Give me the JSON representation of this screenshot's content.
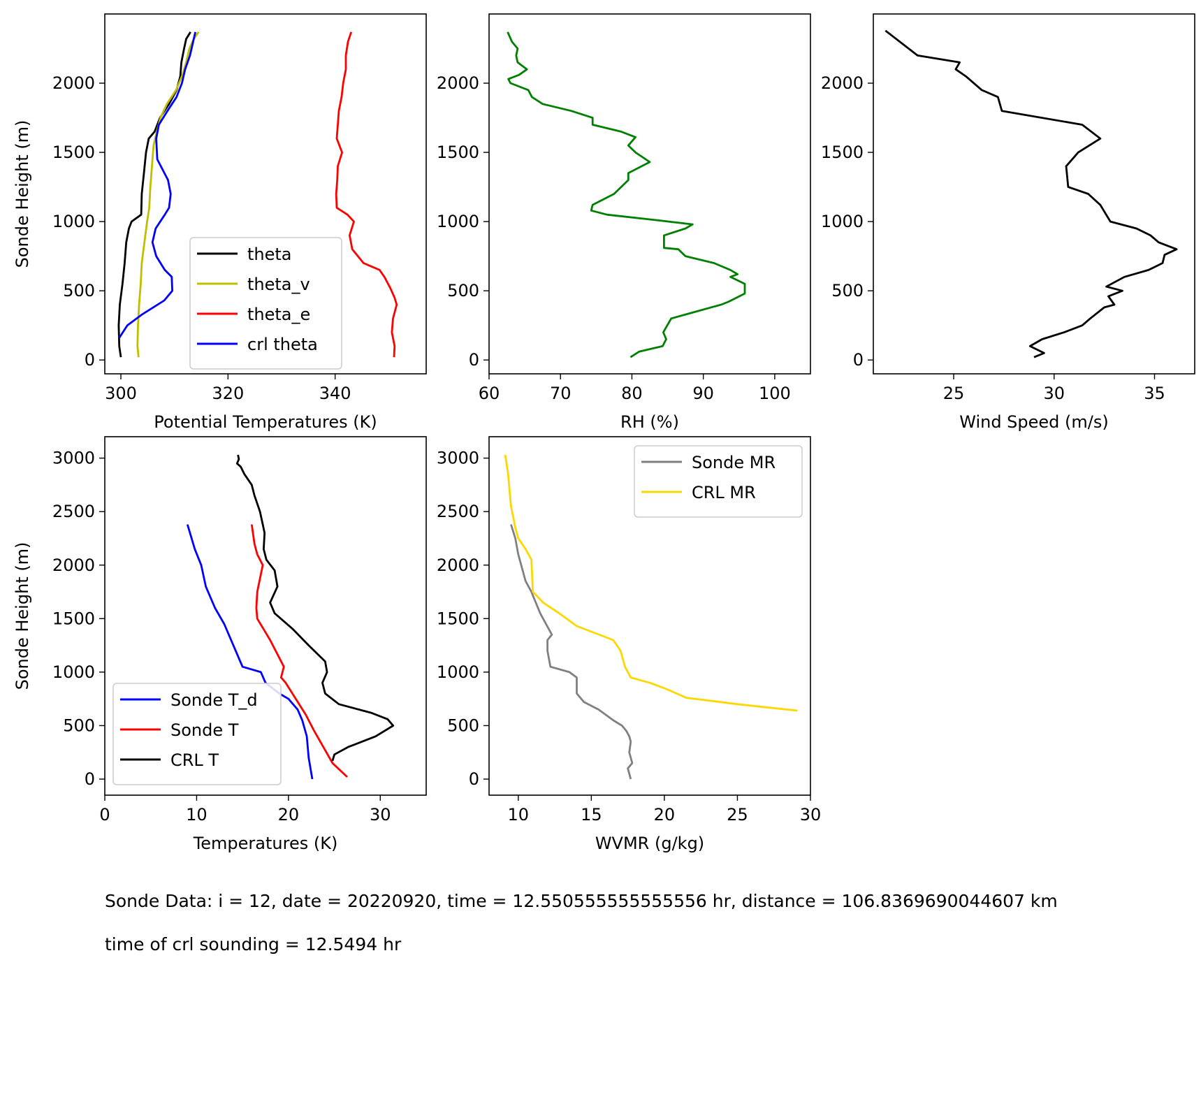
{
  "notes": {
    "sonde_line": "Sonde Data: i = 12, date = 20220920, time = 12.550555555555556 hr, distance = 106.8369690044607 km",
    "crl_line": "time of crl sounding = 12.5494 hr"
  },
  "chart_data": [
    {
      "type": "line",
      "xlabel": "Potential Temperatures (K)",
      "ylabel": "Sonde Height (m)",
      "xlim": [
        297,
        357
      ],
      "ylim": [
        -100,
        2500
      ],
      "xticks": [
        300,
        320,
        340
      ],
      "yticks": [
        0,
        500,
        1000,
        1500,
        2000
      ],
      "legend": "lower-right",
      "series": [
        {
          "name": "theta",
          "color": "#000000",
          "x": [
            300.0,
            299.7,
            299.6,
            299.8,
            300.3,
            300.7,
            301.0,
            301.5,
            302.0,
            303.8,
            303.9,
            304.3,
            304.7,
            305.2,
            306.3,
            307.3,
            309.0,
            310.4,
            311.1,
            311.3,
            311.8,
            312.2,
            313.0
          ],
          "y": [
            20,
            100,
            250,
            400,
            550,
            700,
            850,
            950,
            1000,
            1050,
            1200,
            1350,
            1500,
            1600,
            1650,
            1750,
            1850,
            1950,
            2050,
            2150,
            2250,
            2320,
            2370
          ]
        },
        {
          "name": "theta_v",
          "color": "#bfbf00",
          "x": [
            303.3,
            303.1,
            303.2,
            303.4,
            303.7,
            303.9,
            304.4,
            304.9,
            305.3,
            305.5,
            305.8,
            306.1,
            306.7,
            307.4,
            308.6,
            310.3,
            311.4,
            312.2,
            312.8,
            313.6,
            314.5
          ],
          "y": [
            20,
            100,
            250,
            400,
            550,
            700,
            850,
            1000,
            1100,
            1250,
            1400,
            1550,
            1650,
            1750,
            1850,
            1950,
            2050,
            2150,
            2250,
            2320,
            2370
          ]
        },
        {
          "name": "theta_e",
          "color": "#ff0000",
          "x": [
            351.0,
            351.1,
            350.6,
            350.8,
            351.5,
            351.1,
            350.3,
            349.2,
            348.3,
            345.3,
            343.2,
            342.7,
            343.5,
            342.3,
            340.3,
            340.2,
            340.4,
            340.5,
            341.3,
            340.3,
            340.7,
            341.2,
            341.5,
            342.0,
            342.0,
            342.4,
            343.0
          ],
          "y": [
            20,
            100,
            200,
            300,
            400,
            450,
            520,
            600,
            650,
            700,
            800,
            900,
            1000,
            1050,
            1100,
            1200,
            1300,
            1400,
            1500,
            1600,
            1800,
            1900,
            2000,
            2100,
            2200,
            2300,
            2370
          ]
        },
        {
          "name": "crl theta",
          "color": "#0000ff",
          "x": [
            299.7,
            301.2,
            304.0,
            308.1,
            309.6,
            309.5,
            308.2,
            306.6,
            305.9,
            306.5,
            308.2,
            309.0,
            309.3,
            308.8,
            306.8,
            306.6,
            307.1,
            308.7,
            310.4,
            311.4,
            312.0,
            312.9,
            313.5,
            313.9
          ],
          "y": [
            160,
            250,
            330,
            430,
            500,
            600,
            650,
            750,
            850,
            950,
            1050,
            1100,
            1200,
            1300,
            1450,
            1600,
            1700,
            1800,
            1900,
            2000,
            2100,
            2200,
            2300,
            2370
          ]
        }
      ]
    },
    {
      "type": "line",
      "xlabel": "RH (%)",
      "xlim": [
        60,
        105
      ],
      "ylim": [
        -100,
        2500
      ],
      "xticks": [
        60,
        70,
        80,
        90,
        100
      ],
      "yticks": [
        0,
        500,
        1000,
        1500,
        2000
      ],
      "series": [
        {
          "color": "#008000",
          "x": [
            79.8,
            81.0,
            84.3,
            84.8,
            84.4,
            85.5,
            89.0,
            92.5,
            93.5,
            95.8,
            95.8,
            93.8,
            94.8,
            93.8,
            91.5,
            87.5,
            86.5,
            84.5,
            84.5,
            87.5,
            88.5,
            83.5,
            76.5,
            74.3,
            74.5,
            77.5,
            79.5,
            79.5,
            82.5,
            80.5,
            79.5,
            80.5,
            78.5,
            74.5,
            74.5,
            71.5,
            67.5,
            66.0,
            65.5,
            63.0,
            62.7,
            64.2,
            65.3,
            64.0,
            63.8,
            64.0,
            63.2,
            62.6
          ],
          "y": [
            20,
            60,
            100,
            150,
            200,
            300,
            350,
            400,
            420,
            480,
            550,
            600,
            620,
            650,
            700,
            750,
            800,
            810,
            900,
            950,
            980,
            1010,
            1050,
            1080,
            1120,
            1200,
            1300,
            1350,
            1430,
            1500,
            1550,
            1610,
            1650,
            1700,
            1750,
            1800,
            1850,
            1900,
            1950,
            2000,
            2030,
            2060,
            2100,
            2150,
            2200,
            2250,
            2300,
            2370
          ]
        }
      ]
    },
    {
      "type": "line",
      "xlabel": "Wind Speed (m/s)",
      "xlim": [
        21,
        37
      ],
      "ylim": [
        -100,
        2500
      ],
      "xticks": [
        25,
        30,
        35
      ],
      "yticks": [
        0,
        500,
        1000,
        1500,
        2000
      ],
      "series": [
        {
          "color": "#000000",
          "x": [
            29.0,
            29.5,
            28.8,
            29.4,
            30.5,
            31.4,
            31.8,
            32.5,
            33.0,
            32.7,
            33.4,
            32.6,
            33.5,
            34.7,
            35.4,
            35.5,
            36.1,
            35.2,
            34.8,
            34.1,
            32.8,
            32.3,
            31.7,
            30.7,
            30.6,
            31.2,
            32.3,
            31.4,
            27.4,
            27.2,
            26.4,
            25.6,
            25.1,
            25.3,
            23.2,
            21.6
          ],
          "y": [
            20,
            50,
            100,
            150,
            200,
            250,
            300,
            380,
            400,
            460,
            500,
            530,
            600,
            650,
            700,
            760,
            800,
            850,
            900,
            950,
            1000,
            1120,
            1200,
            1250,
            1400,
            1500,
            1600,
            1700,
            1800,
            1900,
            1950,
            2050,
            2100,
            2150,
            2200,
            2380
          ]
        }
      ]
    },
    {
      "type": "line",
      "xlabel": "Temperatures (K)",
      "ylabel": "Sonde Height (m)",
      "xlim": [
        0,
        35
      ],
      "ylim": [
        -150,
        3200
      ],
      "xticks": [
        0,
        10,
        20,
        30
      ],
      "yticks": [
        0,
        500,
        1000,
        1500,
        2000,
        2500,
        3000
      ],
      "legend": "lower-left",
      "series": [
        {
          "name": "Sonde T_d",
          "color": "#0000ff",
          "x": [
            22.6,
            22.4,
            22.2,
            22.0,
            21.5,
            21.0,
            20.0,
            19.0,
            17.5,
            17.0,
            15.0,
            14.0,
            13.0,
            12.0,
            11.0,
            10.5,
            9.8,
            9.0
          ],
          "y": [
            0,
            100,
            200,
            400,
            550,
            650,
            750,
            800,
            900,
            1000,
            1050,
            1250,
            1450,
            1600,
            1800,
            2000,
            2150,
            2380
          ]
        },
        {
          "name": "Sonde T",
          "color": "#ff0000",
          "x": [
            26.4,
            24.8,
            23.8,
            22.8,
            21.9,
            20.8,
            19.7,
            19.2,
            19.5,
            18.0,
            16.6,
            16.5,
            16.6,
            17.2,
            16.6,
            16.3,
            16.0
          ],
          "y": [
            20,
            150,
            300,
            450,
            600,
            750,
            900,
            950,
            1050,
            1300,
            1500,
            1600,
            1750,
            2000,
            2100,
            2200,
            2380
          ]
        },
        {
          "name": "CRL T",
          "color": "#000000",
          "x": [
            24.8,
            25.0,
            26.5,
            29.5,
            31.4,
            30.8,
            29.0,
            25.5,
            24.0,
            23.7,
            24.2,
            24.0,
            22.2,
            20.5,
            18.5,
            18.0,
            18.8,
            18.5,
            17.6,
            17.3,
            17.4,
            17.2,
            16.9,
            16.5,
            16.3,
            16.0,
            15.2,
            14.8,
            14.4,
            14.6,
            14.5
          ],
          "y": [
            170,
            230,
            300,
            400,
            500,
            560,
            620,
            700,
            800,
            900,
            1000,
            1100,
            1250,
            1400,
            1550,
            1650,
            1800,
            1950,
            2050,
            2150,
            2300,
            2380,
            2500,
            2600,
            2650,
            2750,
            2850,
            2920,
            2950,
            2990,
            3030
          ]
        }
      ]
    },
    {
      "type": "line",
      "xlabel": "WVMR (g/kg)",
      "xlim": [
        8,
        30
      ],
      "ylim": [
        -150,
        3200
      ],
      "xticks": [
        10,
        15,
        20,
        25,
        30
      ],
      "yticks": [
        0,
        500,
        1000,
        1500,
        2000,
        2500,
        3000
      ],
      "legend": "top-right",
      "series": [
        {
          "name": "Sonde MR",
          "color": "#808080",
          "x": [
            17.7,
            17.5,
            17.8,
            17.6,
            17.7,
            17.6,
            17.4,
            17.1,
            16.5,
            15.5,
            14.5,
            14.0,
            14.0,
            13.5,
            12.2,
            12.0,
            12.0,
            12.3,
            11.9,
            11.5,
            11.2,
            10.9,
            10.5,
            10.3,
            10.0,
            9.8,
            9.5
          ],
          "y": [
            0,
            100,
            150,
            250,
            350,
            400,
            450,
            500,
            550,
            650,
            720,
            800,
            950,
            1000,
            1050,
            1200,
            1300,
            1350,
            1450,
            1550,
            1650,
            1750,
            1850,
            1950,
            2100,
            2250,
            2380
          ]
        },
        {
          "name": "CRL MR",
          "color": "#ffd700",
          "x": [
            29.1,
            25.0,
            21.5,
            20.0,
            19.0,
            17.7,
            17.3,
            17.0,
            16.5,
            14.0,
            12.8,
            11.7,
            11.0,
            10.9,
            10.5,
            10.0,
            9.8,
            9.5,
            9.3,
            9.2,
            9.1
          ],
          "y": [
            640,
            700,
            760,
            850,
            900,
            950,
            1050,
            1200,
            1300,
            1430,
            1550,
            1650,
            1750,
            2050,
            2150,
            2250,
            2350,
            2550,
            2850,
            2950,
            3030
          ]
        }
      ]
    }
  ]
}
